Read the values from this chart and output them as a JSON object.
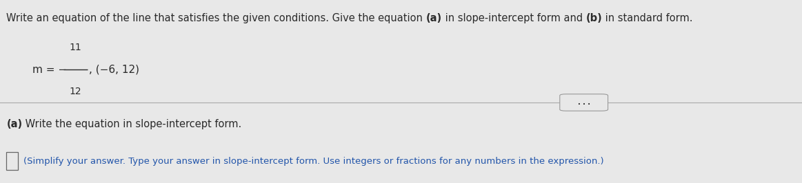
{
  "bg_color": "#e8e8e8",
  "text_color": "#2a2a2a",
  "blue_text_color": "#2255aa",
  "separator_color": "#aaaaaa",
  "line1_prefix": "Write an equation of the line that satisfies the given conditions. Give the equation ",
  "line1_a": "(a)",
  "line1_middle": " in slope-intercept form and ",
  "line1_b": "(b)",
  "line1_suffix": " in standard form.",
  "math_prefix": "m = −",
  "math_frac_num": "11",
  "math_frac_den": "12",
  "math_point": ", (−6, 12)",
  "part_a_bold": "(a)",
  "part_a_rest": " Write the equation in slope-intercept form.",
  "part_a_instruction": "(Simplify your answer. Type your answer in slope-intercept form. Use integers or fractions for any numbers in the expression.)",
  "font_size_main": 10.5,
  "font_size_math": 11,
  "font_size_sub": 9.5
}
